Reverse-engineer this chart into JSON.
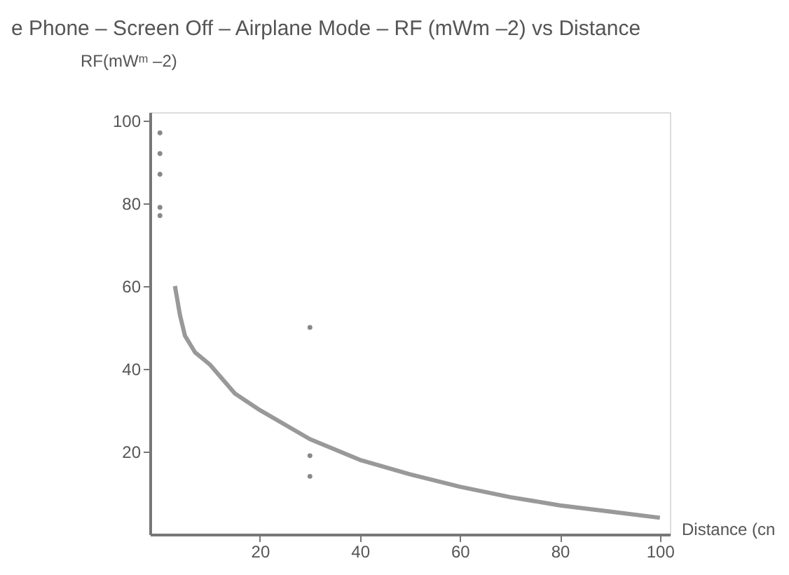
{
  "chart_data": {
    "type": "scatter",
    "title": "e Phone – Screen Off – Airplane Mode – RF (mWm –2) vs Distance",
    "xlabel": "Distance (cn",
    "ylabel": "RF(mWᵐ –2)",
    "xlim": [
      -2,
      102
    ],
    "ylim": [
      0,
      102
    ],
    "xticks": [
      20,
      40,
      60,
      80,
      100
    ],
    "yticks": [
      20,
      40,
      60,
      80,
      100
    ],
    "grid": false,
    "series": [
      {
        "marker": "circle",
        "color": "#888888",
        "x": [
          0,
          0,
          0,
          0,
          0,
          30,
          30,
          30
        ],
        "values": [
          97,
          92,
          87,
          79,
          77,
          50,
          19,
          14
        ]
      },
      {
        "type": "line",
        "color": "#999999",
        "line_style": "solid",
        "marker": "none",
        "x": [
          3,
          4,
          5,
          7,
          10,
          15,
          20,
          30,
          40,
          50,
          60,
          70,
          80,
          90,
          100
        ],
        "values": [
          60,
          53,
          48,
          44,
          41,
          34,
          30,
          23,
          18,
          14.5,
          11.5,
          9,
          7,
          5.5,
          4
        ]
      }
    ]
  }
}
